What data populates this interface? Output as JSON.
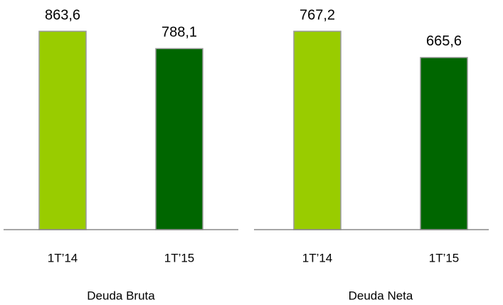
{
  "chart_data": [
    {
      "type": "bar",
      "title": "Deuda Bruta",
      "categories": [
        "1T’14",
        "1T’15"
      ],
      "series": [
        {
          "name": null,
          "values": [
            863.6,
            788.1
          ],
          "value_labels": [
            "863,6",
            "788,1"
          ],
          "colors": [
            "#99cc00",
            "#006600"
          ]
        }
      ]
    },
    {
      "type": "bar",
      "title": "Deuda Neta",
      "categories": [
        "1T’14",
        "1T’15"
      ],
      "series": [
        {
          "name": null,
          "values": [
            767.2,
            665.6
          ],
          "value_labels": [
            "767,2",
            "665,6"
          ],
          "colors": [
            "#99cc00",
            "#006600"
          ]
        }
      ]
    }
  ]
}
